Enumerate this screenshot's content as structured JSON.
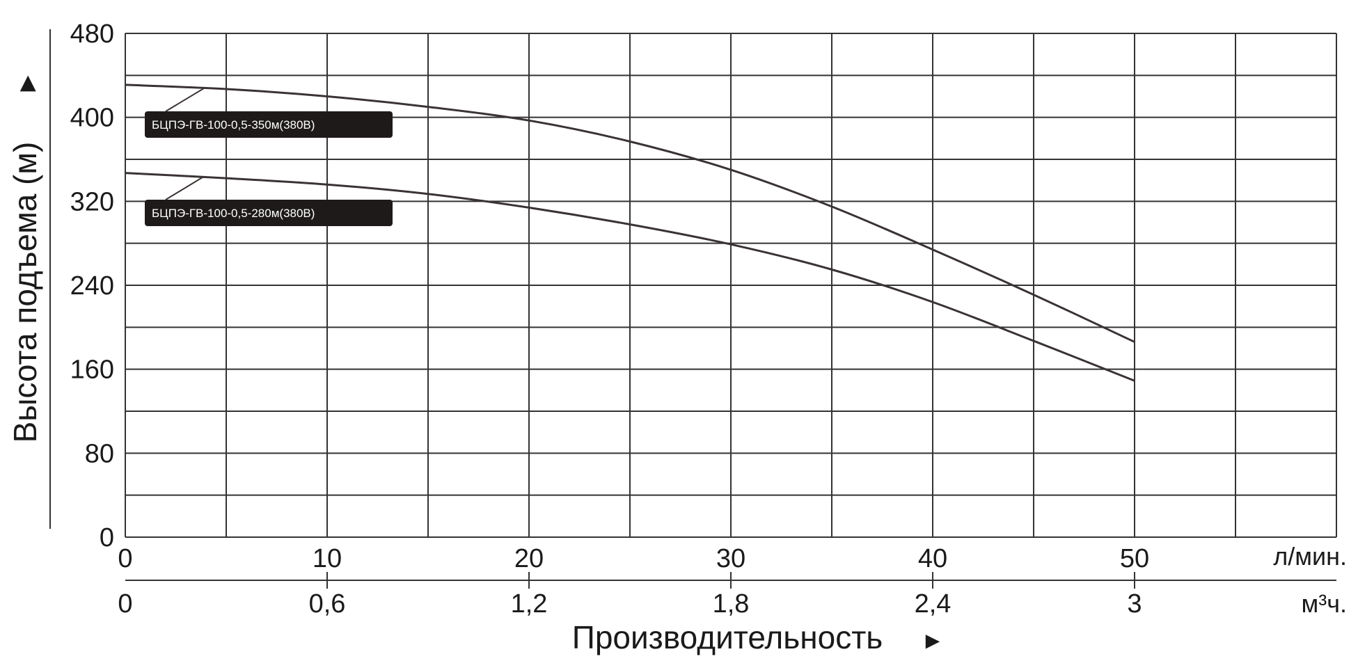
{
  "chart_data": {
    "type": "line",
    "ylabel": "Высота подъема (м)",
    "ylabel_arrow": "▶",
    "xlabel": "Производительность",
    "xlabel_arrow": "►",
    "x_unit_primary": "л/мин.",
    "x_unit_secondary": "м³ч.",
    "xlim": [
      0,
      60
    ],
    "ylim": [
      0,
      480
    ],
    "x_ticks": [
      0,
      10,
      20,
      30,
      40,
      50
    ],
    "x_tick_labels": [
      "0",
      "10",
      "20",
      "30",
      "40",
      "50"
    ],
    "x2_ticks": [
      0,
      10,
      20,
      30,
      40,
      50
    ],
    "x2_tick_labels": [
      "0",
      "0,6",
      "1,2",
      "1,8",
      "2,4",
      "3"
    ],
    "y_ticks": [
      0,
      80,
      160,
      240,
      320,
      400,
      480
    ],
    "y_tick_labels": [
      "0",
      "80",
      "160",
      "240",
      "320",
      "400",
      "480"
    ],
    "grid": true,
    "grid_x_step": 5,
    "grid_y_step": 40,
    "series": [
      {
        "name": "БЦПЭ-ГВ-100-0,5-350м(380В)",
        "x": [
          0,
          5,
          10,
          15,
          20,
          25,
          30,
          35,
          40,
          45,
          50
        ],
        "y": [
          431,
          427,
          420,
          410,
          397,
          377,
          350,
          315,
          274,
          231,
          186
        ]
      },
      {
        "name": "БЦПЭ-ГВ-100-0,5-280м(380В)",
        "x": [
          0,
          5,
          10,
          15,
          20,
          25,
          30,
          35,
          40,
          45,
          50
        ],
        "y": [
          347,
          342,
          336,
          327,
          314,
          298,
          279,
          255,
          224,
          187,
          149
        ]
      }
    ]
  }
}
